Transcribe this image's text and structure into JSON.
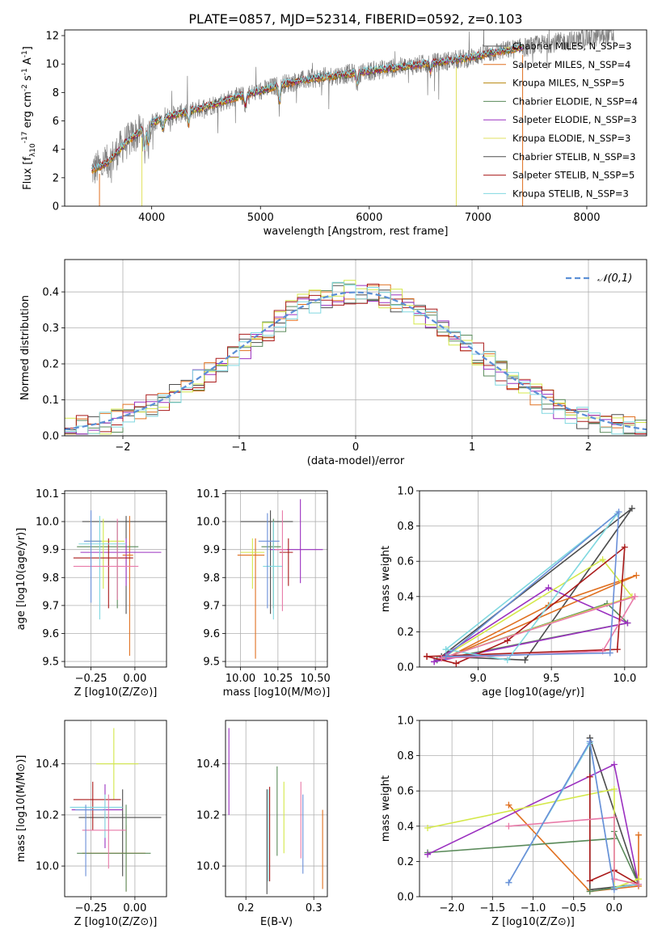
{
  "figure_title": "PLATE=0857, MJD=52314, FIBERID=0592, z=0.103",
  "colors": {
    "data": "#808080",
    "models": [
      "#4d4d4d",
      "#e07020",
      "#b8860b",
      "#5a8a5a",
      "#9b30c0",
      "#e0e060",
      "#4d4d4d",
      "#aa1a1a",
      "#80d8e0"
    ],
    "cm": [
      "#4d4d4d",
      "#e07020",
      "#5a8a5a",
      "#9b30c0",
      "#d4e84a",
      "#aa1a1a",
      "#80d8e0",
      "#e87aa8",
      "#6a8fd8"
    ],
    "gaussian": "#5b8fd6"
  },
  "chart_data": [
    {
      "id": "spectrum",
      "type": "line",
      "xlabel": "wavelength [Angstrom, rest frame]",
      "ylabel": "Flux [f_λ10^-17 erg cm^-2 s^-1 A^-1]",
      "xlim": [
        3200,
        8550
      ],
      "ylim": [
        0,
        12.4
      ],
      "xticks": [
        4000,
        5000,
        6000,
        7000,
        8000
      ],
      "yticks": [
        0,
        2,
        4,
        6,
        8,
        10,
        12
      ],
      "grid": false,
      "legend_position": "top-right",
      "series": [
        {
          "name": "Chabrier MILES, N_SSP=3"
        },
        {
          "name": "Salpeter MILES, N_SSP=4"
        },
        {
          "name": "Kroupa MILES, N_SSP=5"
        },
        {
          "name": "Chabrier ELODIE, N_SSP=4"
        },
        {
          "name": "Salpeter ELODIE, N_SSP=3"
        },
        {
          "name": "Kroupa ELODIE, N_SSP=3"
        },
        {
          "name": "Chabrier STELIB, N_SSP=3"
        },
        {
          "name": "Salpeter STELIB, N_SSP=5"
        },
        {
          "name": "Kroupa STELIB, N_SSP=3"
        }
      ],
      "trend": {
        "x": [
          3450,
          3600,
          3750,
          3900,
          4000,
          4200,
          4500,
          4800,
          5000,
          5200,
          5500,
          5800,
          6000,
          6300,
          6600,
          6900,
          7000,
          7200,
          7450,
          7600,
          7800,
          8000,
          8200
        ],
        "y": [
          2.5,
          3.1,
          4.4,
          5.3,
          5.9,
          6.4,
          7.0,
          7.7,
          8.1,
          8.6,
          9.0,
          9.3,
          9.5,
          9.8,
          10.1,
          10.4,
          10.6,
          10.9,
          11.2,
          11.4,
          11.6,
          11.8,
          12.0
        ]
      },
      "data_range": [
        3450,
        8250
      ],
      "model_range": [
        3450,
        7420
      ]
    },
    {
      "id": "residuals",
      "type": "step",
      "xlabel": "(data-model)/error",
      "ylabel": "Normed distribution",
      "xlim": [
        -2.5,
        2.5
      ],
      "ylim": [
        0,
        0.49
      ],
      "xticks": [
        -2,
        -1,
        0,
        1,
        2
      ],
      "xtick_labels": [
        "−2",
        "−1",
        "0",
        "1",
        "2"
      ],
      "yticks": [
        0,
        0.1,
        0.2,
        0.3,
        0.4
      ],
      "ytick_labels": [
        "0.0",
        "0.1",
        "0.2",
        "0.3",
        "0.4"
      ],
      "grid": true,
      "legend_position": "top-right",
      "legend": "𝒩(0,1)",
      "bin_width": 0.1
    },
    {
      "id": "age-vs-Z",
      "type": "errorbar",
      "xlabel": "Z [log10(Z/Z⊙)]",
      "ylabel": "age [log10(age/yr)]",
      "xlim": [
        -0.4,
        0.18
      ],
      "ylim": [
        9.48,
        10.11
      ],
      "xticks": [
        -0.25,
        0.0
      ],
      "xtick_labels": [
        "−0.25",
        "0.00"
      ],
      "yticks": [
        9.5,
        9.6,
        9.7,
        9.8,
        9.9,
        10.0,
        10.1
      ],
      "ytick_labels": [
        "9.5",
        "9.6",
        "9.7",
        "9.8",
        "9.9",
        "10.0",
        "10.1"
      ],
      "points": [
        {
          "c": 0,
          "x": -0.05,
          "xe": [
            0.25,
            0.28
          ],
          "y": 10.0,
          "ye": [
            0.33,
            0.02
          ]
        },
        {
          "c": 1,
          "x": -0.03,
          "xe": [
            0.04,
            0.02
          ],
          "y": 9.88,
          "ye": [
            0.36,
            0.14
          ]
        },
        {
          "c": 2,
          "x": -0.1,
          "xe": [
            0.23,
            0.12
          ],
          "y": 9.91,
          "ye": [
            0.22,
            0.09
          ]
        },
        {
          "c": 3,
          "x": -0.05,
          "xe": [
            0.26,
            0.2
          ],
          "y": 9.89,
          "ye": [
            0.12,
            0.05
          ]
        },
        {
          "c": 4,
          "x": -0.18,
          "xe": [
            0.1,
            0.12
          ],
          "y": 9.93,
          "ye": [
            0.17,
            0.08
          ]
        },
        {
          "c": 5,
          "x": -0.15,
          "xe": [
            0.2,
            0.14
          ],
          "y": 9.87,
          "ye": [
            0.18,
            0.07
          ]
        },
        {
          "c": 6,
          "x": -0.2,
          "xe": [
            0.12,
            0.15
          ],
          "y": 9.92,
          "ye": [
            0.27,
            0.1
          ]
        },
        {
          "c": 7,
          "x": -0.1,
          "xe": [
            0.25,
            0.12
          ],
          "y": 9.84,
          "ye": [
            0.12,
            0.17
          ]
        },
        {
          "c": 8,
          "x": -0.25,
          "xe": [
            0.04,
            0.06
          ],
          "y": 9.93,
          "ye": [
            0.22,
            0.11
          ]
        }
      ]
    },
    {
      "id": "age-vs-mass",
      "type": "errorbar",
      "xlabel": "mass [log10(M/M⊙)]",
      "ylabel": "",
      "xlim": [
        9.9,
        10.58
      ],
      "ylim": [
        9.48,
        10.11
      ],
      "xticks": [
        10.0,
        10.25,
        10.5
      ],
      "xtick_labels": [
        "10.00",
        "10.25",
        "10.50"
      ],
      "yticks": [
        9.5,
        9.6,
        9.7,
        9.8,
        9.9,
        10.0,
        10.1
      ],
      "ytick_labels": [
        "9.5",
        "9.6",
        "9.7",
        "9.8",
        "9.9",
        "10.0",
        "10.1"
      ],
      "points": [
        {
          "c": 0,
          "x": 10.2,
          "xe": [
            0.2,
            0.15
          ],
          "y": 10.0,
          "ye": [
            0.33,
            0.04
          ]
        },
        {
          "c": 1,
          "x": 10.1,
          "xe": [
            0.12,
            0.06
          ],
          "y": 9.88,
          "ye": [
            0.37,
            0.06
          ]
        },
        {
          "c": 2,
          "x": 10.22,
          "xe": [
            0.08,
            0.05
          ],
          "y": 9.91,
          "ye": [
            0.22,
            0.1
          ]
        },
        {
          "c": 3,
          "x": 10.4,
          "xe": [
            0.2,
            0.15
          ],
          "y": 9.9,
          "ye": [
            0.12,
            0.18
          ]
        },
        {
          "c": 4,
          "x": 10.08,
          "xe": [
            0.08,
            0.08
          ],
          "y": 9.89,
          "ye": [
            0.13,
            0.05
          ]
        },
        {
          "c": 5,
          "x": 10.32,
          "xe": [
            0.06,
            0.03
          ],
          "y": 9.89,
          "ye": [
            0.12,
            0.05
          ]
        },
        {
          "c": 6,
          "x": 10.22,
          "xe": [
            0.07,
            0.06
          ],
          "y": 9.84,
          "ye": [
            0.19,
            0.16
          ]
        },
        {
          "c": 7,
          "x": 10.28,
          "xe": [
            0.05,
            0.03
          ],
          "y": 9.9,
          "ye": [
            0.22,
            0.14
          ]
        },
        {
          "c": 8,
          "x": 10.18,
          "xe": [
            0.06,
            0.08
          ],
          "y": 9.93,
          "ye": [
            0.24,
            0.1
          ]
        }
      ]
    },
    {
      "id": "weight-vs-age",
      "type": "line",
      "xlabel": "age [log10(age/yr)]",
      "ylabel": "mass weight",
      "xlim": [
        8.6,
        10.15
      ],
      "ylim": [
        0,
        1.0
      ],
      "xticks": [
        9.0,
        9.5,
        10.0
      ],
      "xtick_labels": [
        "9.0",
        "9.5",
        "10.0"
      ],
      "yticks": [
        0,
        0.2,
        0.4,
        0.6,
        0.8,
        1.0
      ],
      "ytick_labels": [
        "0.0",
        "0.2",
        "0.4",
        "0.6",
        "0.8",
        "1.0"
      ],
      "series": [
        {
          "c": 0,
          "x": [
            9.32,
            10.05,
            8.75,
            9.32
          ],
          "y": [
            0.04,
            0.9,
            0.06,
            0.04
          ]
        },
        {
          "c": 1,
          "x": [
            9.48,
            10.08,
            8.78,
            9.48
          ],
          "y": [
            0.35,
            0.52,
            0.05,
            0.35
          ]
        },
        {
          "c": 2,
          "x": [
            8.72,
            9.88,
            10.02,
            8.72
          ],
          "y": [
            0.04,
            0.36,
            0.25,
            0.04
          ]
        },
        {
          "c": 3,
          "x": [
            8.7,
            9.48,
            10.02,
            8.7
          ],
          "y": [
            0.03,
            0.45,
            0.25,
            0.03
          ]
        },
        {
          "c": 4,
          "x": [
            8.75,
            9.85,
            10.05,
            8.75
          ],
          "y": [
            0.05,
            0.61,
            0.4,
            0.05
          ]
        },
        {
          "c": 5,
          "x": [
            8.65,
            9.95,
            10.0,
            9.2,
            8.85,
            8.65
          ],
          "y": [
            0.06,
            0.1,
            0.68,
            0.15,
            0.02,
            0.06
          ]
        },
        {
          "c": 6,
          "x": [
            8.78,
            9.95,
            9.2,
            8.78
          ],
          "y": [
            0.1,
            0.87,
            0.04,
            0.1
          ]
        },
        {
          "c": 7,
          "x": [
            8.75,
            9.85,
            10.07,
            8.75
          ],
          "y": [
            0.05,
            0.09,
            0.4,
            0.05
          ]
        },
        {
          "c": 8,
          "x": [
            8.78,
            9.96,
            9.9,
            8.78
          ],
          "y": [
            0.06,
            0.88,
            0.08,
            0.06
          ]
        }
      ]
    },
    {
      "id": "mass-vs-Z",
      "type": "errorbar",
      "xlabel": "Z [log10(Z/Z⊙)]",
      "ylabel": "mass [log10(M/M⊙)]",
      "xlim": [
        -0.4,
        0.18
      ],
      "ylim": [
        9.88,
        10.57
      ],
      "xticks": [
        -0.25,
        0.0
      ],
      "xtick_labels": [
        "−0.25",
        "0.00"
      ],
      "yticks": [
        10.0,
        10.2,
        10.4
      ],
      "ytick_labels": [
        "10.0",
        "10.2",
        "10.4"
      ],
      "points": [
        {
          "c": 0,
          "x": -0.07,
          "xe": [
            0.25,
            0.22
          ],
          "y": 10.19,
          "ye": [
            0.23,
            0.11
          ]
        },
        {
          "c": 1,
          "x": -0.05,
          "xe": [
            0.25,
            0.11
          ],
          "y": 10.05,
          "ye": [
            0.15,
            0.11
          ]
        },
        {
          "c": 2,
          "x": -0.05,
          "xe": [
            0.28,
            0.14
          ],
          "y": 10.05,
          "ye": [
            0.15,
            0.19
          ]
        },
        {
          "c": 3,
          "x": -0.17,
          "xe": [
            0.19,
            0.1
          ],
          "y": 10.22,
          "ye": [
            0.15,
            0.1
          ]
        },
        {
          "c": 4,
          "x": -0.12,
          "xe": [
            0.1,
            0.14
          ],
          "y": 10.4,
          "ye": [
            0.14,
            0.14
          ]
        },
        {
          "c": 5,
          "x": -0.24,
          "xe": [
            0.11,
            0.16
          ],
          "y": 10.26,
          "ye": [
            0.12,
            0.07
          ]
        },
        {
          "c": 6,
          "x": -0.17,
          "xe": [
            0.2,
            0.1
          ],
          "y": 10.23,
          "ye": [
            0.12,
            0.05
          ]
        },
        {
          "c": 7,
          "x": -0.15,
          "xe": [
            0.15,
            0.1
          ],
          "y": 10.14,
          "ye": [
            0.15,
            0.14
          ]
        },
        {
          "c": 8,
          "x": -0.28,
          "xe": [
            0.06,
            0.1
          ],
          "y": 10.22,
          "ye": [
            0.26,
            0.02
          ]
        }
      ]
    },
    {
      "id": "mass-vs-EBV",
      "type": "errorbar",
      "xlabel": "E(B-V)",
      "ylabel": "",
      "xlim": [
        0.17,
        0.32
      ],
      "ylim": [
        9.88,
        10.57
      ],
      "xticks": [
        0.2,
        0.3
      ],
      "xtick_labels": [
        "0.2",
        "0.3"
      ],
      "yticks": [
        10.0,
        10.2,
        10.4
      ],
      "ytick_labels": [
        "10.0",
        "10.2",
        "10.4"
      ],
      "points": [
        {
          "c": 0,
          "x": 0.231,
          "y": 10.09,
          "ye": [
            0.2,
            0.21
          ]
        },
        {
          "c": 1,
          "x": 0.313,
          "y": 10.06,
          "ye": [
            0.15,
            0.16
          ]
        },
        {
          "c": 2,
          "x": 0.246,
          "y": 10.2,
          "ye": [
            0.16,
            0.19
          ]
        },
        {
          "c": 3,
          "x": 0.175,
          "y": 10.37,
          "ye": [
            0.17,
            0.17
          ]
        },
        {
          "c": 4,
          "x": 0.256,
          "y": 10.19,
          "ye": [
            0.14,
            0.14
          ]
        },
        {
          "c": 5,
          "x": 0.235,
          "y": 10.11,
          "ye": [
            0.17,
            0.2
          ]
        },
        {
          "c": 6,
          "x": 0.233,
          "y": 10.08,
          "ye": [
            0.14,
            0.22
          ]
        },
        {
          "c": 7,
          "x": 0.281,
          "y": 10.18,
          "ye": [
            0.15,
            0.15
          ]
        },
        {
          "c": 8,
          "x": 0.284,
          "y": 10.12,
          "ye": [
            0.15,
            0.16
          ]
        }
      ]
    },
    {
      "id": "weight-vs-Z",
      "type": "line",
      "xlabel": "Z [log10(Z/Z⊙)]",
      "ylabel": "mass weight",
      "xlim": [
        -2.4,
        0.4
      ],
      "ylim": [
        0,
        1.0
      ],
      "xticks": [
        -2.0,
        -1.5,
        -1.0,
        -0.5,
        0.0
      ],
      "xtick_labels": [
        "−2.0",
        "−1.5",
        "−1.0",
        "−0.5",
        "0.0"
      ],
      "yticks": [
        0,
        0.2,
        0.4,
        0.6,
        0.8,
        1.0
      ],
      "ytick_labels": [
        "0.0",
        "0.2",
        "0.4",
        "0.6",
        "0.8",
        "1.0"
      ],
      "series": [
        {
          "c": 0,
          "x": [
            -0.3,
            -0.3,
            0.3,
            -0.3
          ],
          "y": [
            0.9,
            0.04,
            0.07,
            0.9
          ]
        },
        {
          "c": 1,
          "x": [
            -1.3,
            -0.3,
            0.3,
            0.3
          ],
          "y": [
            0.52,
            0.03,
            0.06,
            0.35
          ]
        },
        {
          "c": 2,
          "x": [
            -2.3,
            0.0,
            0.0,
            0.3,
            -0.3
          ],
          "y": [
            0.25,
            0.33,
            0.37,
            0.07,
            0.03
          ]
        },
        {
          "c": 3,
          "x": [
            -2.3,
            0.0,
            0.3,
            0.0
          ],
          "y": [
            0.24,
            0.75,
            0.07,
            0.05
          ]
        },
        {
          "c": 4,
          "x": [
            -2.3,
            0.0,
            0.0,
            0.3
          ],
          "y": [
            0.39,
            0.61,
            0.05,
            0.1
          ]
        },
        {
          "c": 5,
          "x": [
            -0.3,
            -0.3,
            0.0,
            0.3
          ],
          "y": [
            0.68,
            0.09,
            0.15,
            0.07
          ]
        },
        {
          "c": 6,
          "x": [
            -1.3,
            -0.3,
            0.0,
            0.3
          ],
          "y": [
            0.08,
            0.87,
            0.05,
            0.07
          ]
        },
        {
          "c": 7,
          "x": [
            -1.3,
            0.0,
            0.0,
            0.3
          ],
          "y": [
            0.4,
            0.45,
            0.1,
            0.07
          ]
        },
        {
          "c": 8,
          "x": [
            -1.3,
            -0.3,
            0.0
          ],
          "y": [
            0.08,
            0.88,
            0.04
          ]
        }
      ]
    }
  ]
}
